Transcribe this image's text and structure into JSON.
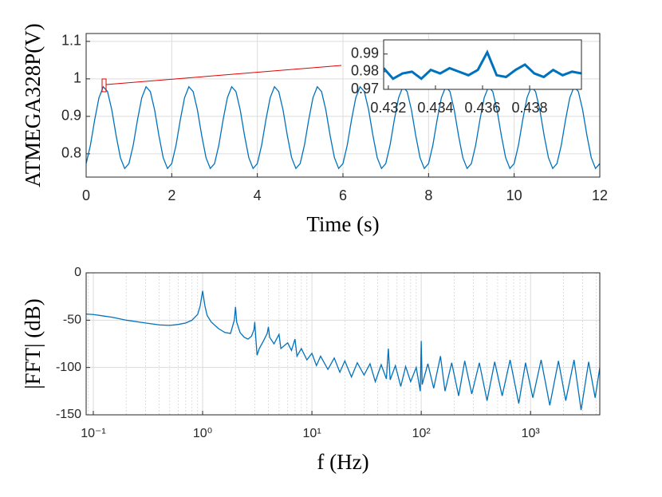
{
  "chart_data": [
    {
      "type": "line",
      "ylabel": "ATMEGA328P(V)",
      "xlabel": "Time (s)",
      "grid": true,
      "xscale": "linear",
      "xlim": [
        0,
        12
      ],
      "xticks": [
        0,
        2,
        4,
        6,
        8,
        10,
        12
      ],
      "ylim": [
        0.738,
        1.121
      ],
      "yticks": [
        0.8,
        0.9,
        1,
        1.1
      ],
      "series": [
        {
          "color": "#0072bd",
          "x": [
            0,
            0.1,
            0.2,
            0.3,
            0.4,
            0.5,
            0.6,
            0.7,
            0.8,
            0.9,
            1,
            1.1,
            1.2,
            1.3,
            1.4,
            1.5,
            1.6,
            1.7,
            1.8,
            1.9,
            2,
            2.1,
            2.2,
            2.3,
            2.4,
            2.5,
            2.6,
            2.7,
            2.8,
            2.9,
            3,
            3.1,
            3.2,
            3.3,
            3.4,
            3.5,
            3.6,
            3.7,
            3.8,
            3.9,
            4,
            4.1,
            4.2,
            4.3,
            4.4,
            4.5,
            4.6,
            4.7,
            4.8,
            4.9,
            5,
            5.1,
            5.2,
            5.3,
            5.4,
            5.5,
            5.6,
            5.7,
            5.8,
            5.9,
            6,
            6.1,
            6.2,
            6.3,
            6.4,
            6.5,
            6.6,
            6.7,
            6.8,
            6.9,
            7,
            7.1,
            7.2,
            7.3,
            7.4,
            7.5,
            7.6,
            7.7,
            7.8,
            7.9,
            8,
            8.1,
            8.2,
            8.3,
            8.4,
            8.5,
            8.6,
            8.7,
            8.8,
            8.9,
            9,
            9.1,
            9.2,
            9.3,
            9.4,
            9.5,
            9.6,
            9.7,
            9.8,
            9.9,
            10,
            10.1,
            10.2,
            10.3,
            10.4,
            10.5,
            10.6,
            10.7,
            10.8,
            10.9,
            11,
            11.1,
            11.2,
            11.3,
            11.4,
            11.5,
            11.6,
            11.7,
            11.8,
            11.9,
            12
          ],
          "values": [
            0.774,
            0.823,
            0.891,
            0.95,
            0.979,
            0.966,
            0.917,
            0.849,
            0.79,
            0.761,
            0.774,
            0.823,
            0.891,
            0.95,
            0.979,
            0.966,
            0.917,
            0.849,
            0.79,
            0.761,
            0.774,
            0.823,
            0.891,
            0.95,
            0.979,
            0.966,
            0.917,
            0.849,
            0.79,
            0.761,
            0.774,
            0.823,
            0.891,
            0.95,
            0.979,
            0.966,
            0.917,
            0.849,
            0.79,
            0.761,
            0.774,
            0.823,
            0.891,
            0.95,
            0.979,
            0.966,
            0.917,
            0.849,
            0.79,
            0.761,
            0.774,
            0.823,
            0.891,
            0.95,
            0.979,
            0.966,
            0.917,
            0.849,
            0.79,
            0.761,
            0.774,
            0.823,
            0.891,
            0.95,
            0.979,
            0.966,
            0.917,
            0.849,
            0.79,
            0.761,
            0.774,
            0.823,
            0.891,
            0.95,
            0.979,
            0.966,
            0.917,
            0.849,
            0.79,
            0.761,
            0.774,
            0.823,
            0.891,
            0.95,
            0.979,
            0.966,
            0.917,
            0.849,
            0.79,
            0.761,
            0.774,
            0.823,
            0.891,
            0.95,
            0.979,
            0.966,
            0.917,
            0.849,
            0.79,
            0.761,
            0.774,
            0.823,
            0.891,
            0.95,
            0.979,
            0.966,
            0.917,
            0.849,
            0.79,
            0.761,
            0.774,
            0.823,
            0.891,
            0.95,
            0.979,
            0.966,
            0.917,
            0.849,
            0.79,
            0.761,
            0.774
          ]
        }
      ]
    },
    {
      "type": "line",
      "grid": false,
      "xscale": "linear",
      "xlim": [
        0.4318,
        0.4402
      ],
      "xticks": [
        0.432,
        0.434,
        0.436,
        0.438
      ],
      "ylim": [
        0.97,
        0.998
      ],
      "yticks": [
        0.97,
        0.98,
        0.99
      ],
      "series": [
        {
          "color": "#0072bd",
          "x": [
            0.4318,
            0.4322,
            0.4326,
            0.433,
            0.4334,
            0.4338,
            0.4342,
            0.4346,
            0.435,
            0.4354,
            0.4358,
            0.4362,
            0.4366,
            0.437,
            0.4374,
            0.4378,
            0.4382,
            0.4386,
            0.439,
            0.4394,
            0.4398,
            0.4402
          ],
          "values": [
            0.982,
            0.976,
            0.979,
            0.98,
            0.976,
            0.981,
            0.979,
            0.982,
            0.98,
            0.978,
            0.981,
            0.991,
            0.978,
            0.977,
            0.981,
            0.984,
            0.979,
            0.977,
            0.981,
            0.978,
            0.98,
            0.979
          ]
        }
      ]
    },
    {
      "type": "line",
      "ylabel": "|FFT| (dB)",
      "xlabel": "f (Hz)",
      "grid": true,
      "minor_grid": true,
      "xscale": "log",
      "xlim": [
        0.086,
        4300
      ],
      "xticks": [
        {
          "value": 0.1,
          "label": "10⁻¹"
        },
        {
          "value": 1,
          "label": "10⁰"
        },
        {
          "value": 10,
          "label": "10¹"
        },
        {
          "value": 100,
          "label": "10²"
        },
        {
          "value": 1000,
          "label": "10³"
        }
      ],
      "ylim": [
        -150,
        0
      ],
      "yticks": [
        0,
        -50,
        -100,
        -150
      ],
      "series": [
        {
          "color": "#0072bd",
          "x": [
            0.086,
            0.1,
            0.15,
            0.2,
            0.3,
            0.4,
            0.5,
            0.6,
            0.7,
            0.8,
            0.9,
            0.95,
            1.0,
            1.05,
            1.1,
            1.2,
            1.4,
            1.6,
            1.8,
            1.95,
            2.0,
            2.05,
            2.2,
            2.4,
            2.6,
            2.8,
            2.95,
            3.0,
            3.05,
            3.15,
            3.3,
            3.6,
            3.9,
            4.0,
            4.1,
            4.5,
            5.0,
            5.2,
            6.0,
            6.5,
            7.0,
            7.3,
            8,
            9,
            10,
            11,
            12,
            14,
            16,
            18,
            20,
            23,
            26,
            30,
            34,
            38,
            43,
            48,
            50,
            52,
            58,
            65,
            72,
            80,
            90,
            98,
            100,
            102,
            115,
            130,
            150,
            165,
            190,
            220,
            250,
            290,
            340,
            400,
            470,
            550,
            650,
            780,
            900,
            1050,
            1250,
            1500,
            1800,
            2100,
            2500,
            2900,
            3400,
            3900,
            4300
          ],
          "values": [
            -43.5,
            -44,
            -47,
            -50,
            -53,
            -55,
            -55.5,
            -54.5,
            -53,
            -50,
            -44,
            -35,
            -19,
            -35,
            -45,
            -52,
            -59,
            -63,
            -64,
            -50,
            -36,
            -52,
            -63,
            -68,
            -70,
            -67,
            -60,
            -52,
            -65,
            -87,
            -80,
            -72,
            -64,
            -57,
            -68,
            -75,
            -65,
            -80,
            -74,
            -82,
            -70,
            -88,
            -80,
            -92,
            -85,
            -98,
            -88,
            -102,
            -90,
            -105,
            -93,
            -110,
            -95,
            -108,
            -96,
            -115,
            -97,
            -112,
            -80,
            -113,
            -98,
            -120,
            -99,
            -115,
            -100,
            -125,
            -72,
            -118,
            -96,
            -122,
            -88,
            -125,
            -95,
            -130,
            -93,
            -128,
            -95,
            -135,
            -94,
            -130,
            -92,
            -138,
            -95,
            -132,
            -92,
            -140,
            -93,
            -135,
            -92,
            -145,
            -94,
            -132,
            -100
          ]
        }
      ]
    }
  ]
}
